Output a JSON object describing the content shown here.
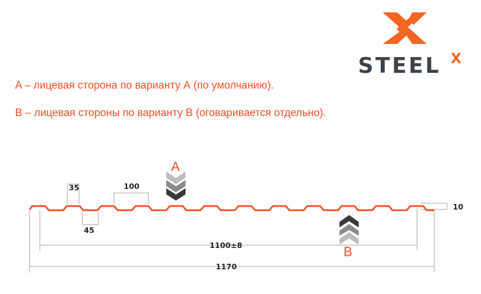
{
  "logo": {
    "text": "STEEL",
    "superscript": "X",
    "accent": "#f26522",
    "dark": "#3d4249"
  },
  "notes": [
    "A – лицевая сторона по варианту А (по умолчанию).",
    "В – лицевая стороны по варианту В (оговаривается отдельно)."
  ],
  "diagram": {
    "profile_color": "#f04e23",
    "dimension_color": "#c8c8c8",
    "dimensions": {
      "top_width": "35",
      "bottom_width": "45",
      "pitch": "100",
      "height": "10",
      "useful_width": "1100±8",
      "total_width": "1170"
    },
    "side_labels": {
      "a": "A",
      "b": "B"
    }
  }
}
